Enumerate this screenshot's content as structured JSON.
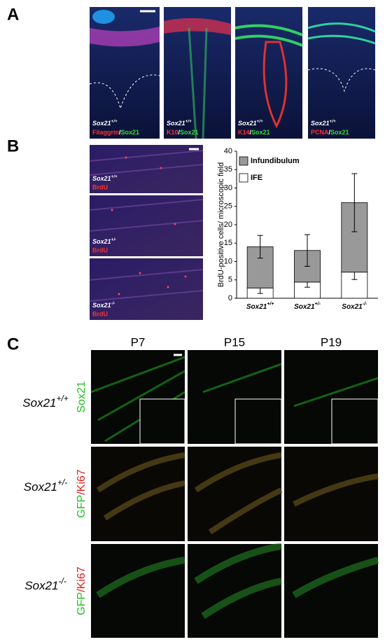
{
  "panel_a": {
    "letter": "A",
    "images": [
      {
        "genotype": "Sox21+/+",
        "stain": [
          "Filaggrin",
          "/",
          "Sox21"
        ]
      },
      {
        "genotype": "Sox21+/+",
        "stain": [
          "K10",
          "/",
          "Sox21"
        ]
      },
      {
        "genotype": "Sox21+/+",
        "stain": [
          "K14",
          "/",
          "Sox21"
        ]
      },
      {
        "genotype": "Sox21+/+",
        "stain": [
          "PCNA",
          "/",
          "Sox21"
        ]
      }
    ]
  },
  "panel_b": {
    "letter": "B",
    "images": [
      {
        "genotype": "Sox21+/+",
        "stain": "BrdU"
      },
      {
        "genotype": "Sox21+/-",
        "stain": "BrdU"
      },
      {
        "genotype": "Sox21-/-",
        "stain": "BrdU"
      }
    ]
  },
  "chart_data": {
    "type": "bar",
    "stacked": true,
    "y_label": "BrdU-positive cells/ microscopic field",
    "categories": [
      "Sox21+/+",
      "Sox21+/-",
      "Sox21-/-"
    ],
    "series": [
      {
        "name": "IFE",
        "color": "#ffffff",
        "values": [
          2.8,
          4.4,
          7.1
        ],
        "errors": [
          1.5,
          1.4,
          2.0
        ]
      },
      {
        "name": "Infundibulum",
        "color": "#999999",
        "values": [
          11.2,
          8.6,
          18.9
        ],
        "errors": [
          3.1,
          4.3,
          7.9
        ]
      }
    ],
    "ylim": [
      0,
      40
    ],
    "yticks": [
      0,
      5,
      10,
      15,
      20,
      25,
      30,
      35,
      40
    ],
    "legend": "top-left"
  },
  "panel_c": {
    "letter": "C",
    "columns": [
      "P7",
      "P15",
      "P19"
    ],
    "rows": [
      {
        "genotype": "Sox21+/+",
        "stain": [
          "Sox21"
        ]
      },
      {
        "genotype": "Sox21+/-",
        "stain": [
          "GFP",
          "/",
          "Ki67"
        ]
      },
      {
        "genotype": "Sox21-/-",
        "stain": [
          "GFP",
          "/",
          "Ki67"
        ]
      }
    ]
  }
}
